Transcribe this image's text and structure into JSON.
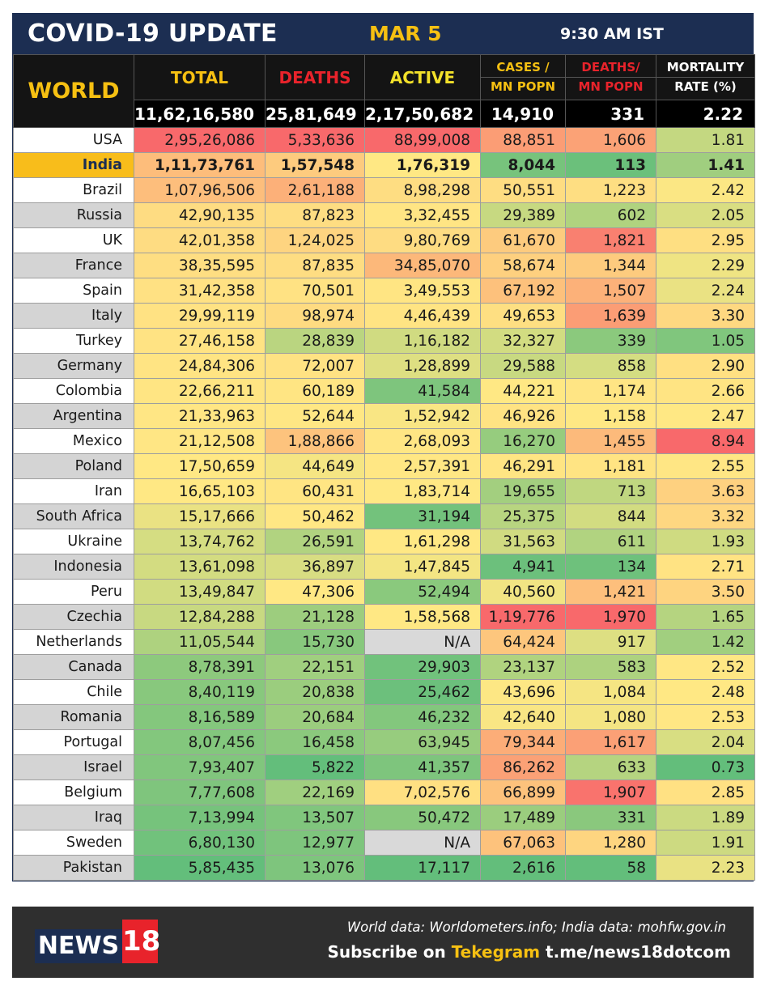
{
  "header": {
    "title": "COVID-19 UPDATE",
    "date": "MAR 5",
    "time": "9:30 AM IST"
  },
  "columns": {
    "region": "WORLD",
    "total": "TOTAL",
    "deaths": "DEATHS",
    "active": "ACTIVE",
    "cases_mn_1": "CASES /",
    "cases_mn_2": "MN POPN",
    "deaths_mn_1": "DEATHS/",
    "deaths_mn_2": "MN POPN",
    "mortality_1": "MORTALITY",
    "mortality_2": "RATE (%)"
  },
  "world": {
    "total": "11,62,16,580",
    "deaths": "25,81,649",
    "active": "2,17,50,682",
    "cases_mn": "14,910",
    "deaths_mn": "331",
    "mortality": "2.22"
  },
  "rows": [
    {
      "country": "USA",
      "total": "2,95,26,086",
      "deaths": "5,33,636",
      "active": "88,99,008",
      "cases_mn": "88,851",
      "deaths_mn": "1,606",
      "mortality": "1.81"
    },
    {
      "country": "India",
      "total": "1,11,73,761",
      "deaths": "1,57,548",
      "active": "1,76,319",
      "cases_mn": "8,044",
      "deaths_mn": "113",
      "mortality": "1.41"
    },
    {
      "country": "Brazil",
      "total": "1,07,96,506",
      "deaths": "2,61,188",
      "active": "8,98,298",
      "cases_mn": "50,551",
      "deaths_mn": "1,223",
      "mortality": "2.42"
    },
    {
      "country": "Russia",
      "total": "42,90,135",
      "deaths": "87,823",
      "active": "3,32,455",
      "cases_mn": "29,389",
      "deaths_mn": "602",
      "mortality": "2.05"
    },
    {
      "country": "UK",
      "total": "42,01,358",
      "deaths": "1,24,025",
      "active": "9,80,769",
      "cases_mn": "61,670",
      "deaths_mn": "1,821",
      "mortality": "2.95"
    },
    {
      "country": "France",
      "total": "38,35,595",
      "deaths": "87,835",
      "active": "34,85,070",
      "cases_mn": "58,674",
      "deaths_mn": "1,344",
      "mortality": "2.29"
    },
    {
      "country": "Spain",
      "total": "31,42,358",
      "deaths": "70,501",
      "active": "3,49,553",
      "cases_mn": "67,192",
      "deaths_mn": "1,507",
      "mortality": "2.24"
    },
    {
      "country": "Italy",
      "total": "29,99,119",
      "deaths": "98,974",
      "active": "4,46,439",
      "cases_mn": "49,653",
      "deaths_mn": "1,639",
      "mortality": "3.30"
    },
    {
      "country": "Turkey",
      "total": "27,46,158",
      "deaths": "28,839",
      "active": "1,16,182",
      "cases_mn": "32,327",
      "deaths_mn": "339",
      "mortality": "1.05"
    },
    {
      "country": "Germany",
      "total": "24,84,306",
      "deaths": "72,007",
      "active": "1,28,899",
      "cases_mn": "29,588",
      "deaths_mn": "858",
      "mortality": "2.90"
    },
    {
      "country": "Colombia",
      "total": "22,66,211",
      "deaths": "60,189",
      "active": "41,584",
      "cases_mn": "44,221",
      "deaths_mn": "1,174",
      "mortality": "2.66"
    },
    {
      "country": "Argentina",
      "total": "21,33,963",
      "deaths": "52,644",
      "active": "1,52,942",
      "cases_mn": "46,926",
      "deaths_mn": "1,158",
      "mortality": "2.47"
    },
    {
      "country": "Mexico",
      "total": "21,12,508",
      "deaths": "1,88,866",
      "active": "2,68,093",
      "cases_mn": "16,270",
      "deaths_mn": "1,455",
      "mortality": "8.94"
    },
    {
      "country": "Poland",
      "total": "17,50,659",
      "deaths": "44,649",
      "active": "2,57,391",
      "cases_mn": "46,291",
      "deaths_mn": "1,181",
      "mortality": "2.55"
    },
    {
      "country": "Iran",
      "total": "16,65,103",
      "deaths": "60,431",
      "active": "1,83,714",
      "cases_mn": "19,655",
      "deaths_mn": "713",
      "mortality": "3.63"
    },
    {
      "country": "South Africa",
      "total": "15,17,666",
      "deaths": "50,462",
      "active": "31,194",
      "cases_mn": "25,375",
      "deaths_mn": "844",
      "mortality": "3.32"
    },
    {
      "country": "Ukraine",
      "total": "13,74,762",
      "deaths": "26,591",
      "active": "1,61,298",
      "cases_mn": "31,563",
      "deaths_mn": "611",
      "mortality": "1.93"
    },
    {
      "country": "Indonesia",
      "total": "13,61,098",
      "deaths": "36,897",
      "active": "1,47,845",
      "cases_mn": "4,941",
      "deaths_mn": "134",
      "mortality": "2.71"
    },
    {
      "country": "Peru",
      "total": "13,49,847",
      "deaths": "47,306",
      "active": "52,494",
      "cases_mn": "40,560",
      "deaths_mn": "1,421",
      "mortality": "3.50"
    },
    {
      "country": "Czechia",
      "total": "12,84,288",
      "deaths": "21,128",
      "active": "1,58,568",
      "cases_mn": "1,19,776",
      "deaths_mn": "1,970",
      "mortality": "1.65"
    },
    {
      "country": "Netherlands",
      "total": "11,05,544",
      "deaths": "15,730",
      "active": "N/A",
      "cases_mn": "64,424",
      "deaths_mn": "917",
      "mortality": "1.42"
    },
    {
      "country": "Canada",
      "total": "8,78,391",
      "deaths": "22,151",
      "active": "29,903",
      "cases_mn": "23,137",
      "deaths_mn": "583",
      "mortality": "2.52"
    },
    {
      "country": "Chile",
      "total": "8,40,119",
      "deaths": "20,838",
      "active": "25,462",
      "cases_mn": "43,696",
      "deaths_mn": "1,084",
      "mortality": "2.48"
    },
    {
      "country": "Romania",
      "total": "8,16,589",
      "deaths": "20,684",
      "active": "46,232",
      "cases_mn": "42,640",
      "deaths_mn": "1,080",
      "mortality": "2.53"
    },
    {
      "country": "Portugal",
      "total": "8,07,456",
      "deaths": "16,458",
      "active": "63,945",
      "cases_mn": "79,344",
      "deaths_mn": "1,617",
      "mortality": "2.04"
    },
    {
      "country": "Israel",
      "total": "7,93,407",
      "deaths": "5,822",
      "active": "41,357",
      "cases_mn": "86,262",
      "deaths_mn": "633",
      "mortality": "0.73"
    },
    {
      "country": "Belgium",
      "total": "7,77,608",
      "deaths": "22,169",
      "active": "7,02,576",
      "cases_mn": "66,899",
      "deaths_mn": "1,907",
      "mortality": "2.85"
    },
    {
      "country": "Iraq",
      "total": "7,13,994",
      "deaths": "13,507",
      "active": "50,472",
      "cases_mn": "17,489",
      "deaths_mn": "331",
      "mortality": "1.89"
    },
    {
      "country": "Sweden",
      "total": "6,80,130",
      "deaths": "12,977",
      "active": "N/A",
      "cases_mn": "67,063",
      "deaths_mn": "1,280",
      "mortality": "1.91"
    },
    {
      "country": "Pakistan",
      "total": "5,85,435",
      "deaths": "13,076",
      "active": "17,117",
      "cases_mn": "2,616",
      "deaths_mn": "58",
      "mortality": "2.23"
    }
  ],
  "colors": {
    "header_bg": "#1c2e52",
    "accent_yellow": "#f6c012",
    "accent_red": "#e8232b",
    "highlight_row": "#f8bd1b",
    "na_cell": "#d9d9d9",
    "scale_green": "#63be7b",
    "scale_yellow": "#ffe884",
    "scale_red": "#f8696b"
  },
  "footer": {
    "source": "World data: Worldometers.info; India data: mohfw.gov.in",
    "subscribe_prefix": "Subscribe on ",
    "subscribe_app": "Tekegram",
    "subscribe_link": " t.me/news18dotcom",
    "logo_text": "NEWS",
    "logo_number": "18"
  }
}
